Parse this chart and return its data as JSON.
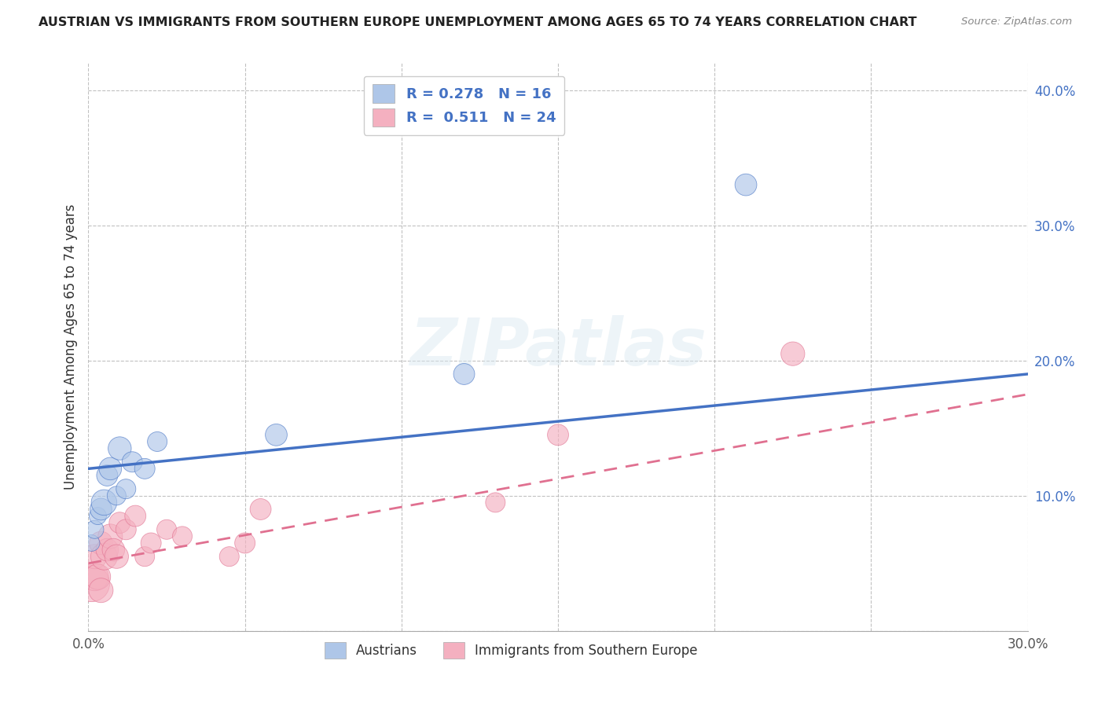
{
  "title": "AUSTRIAN VS IMMIGRANTS FROM SOUTHERN EUROPE UNEMPLOYMENT AMONG AGES 65 TO 74 YEARS CORRELATION CHART",
  "source": "Source: ZipAtlas.com",
  "ylabel": "Unemployment Among Ages 65 to 74 years",
  "xlim": [
    0.0,
    0.3
  ],
  "ylim": [
    0.0,
    0.42
  ],
  "x_ticks": [
    0.0,
    0.05,
    0.1,
    0.15,
    0.2,
    0.25,
    0.3
  ],
  "y_ticks": [
    0.0,
    0.1,
    0.2,
    0.3,
    0.4
  ],
  "R_austrians": 0.278,
  "N_austrians": 16,
  "R_immigrants": 0.511,
  "N_immigrants": 24,
  "color_austrians": "#aec6e8",
  "color_immigrants": "#f4b0c0",
  "line_color_austrians": "#4472c4",
  "line_color_immigrants": "#e07090",
  "legend_label_austrians": "Austrians",
  "legend_label_immigrants": "Immigrants from Southern Europe",
  "watermark": "ZIPatlas",
  "background_color": "#ffffff",
  "grid_color": "#bbbbbb",
  "austrians_x": [
    0.001,
    0.002,
    0.003,
    0.004,
    0.005,
    0.006,
    0.007,
    0.009,
    0.01,
    0.012,
    0.014,
    0.018,
    0.022,
    0.06,
    0.12,
    0.21
  ],
  "austrians_y": [
    0.065,
    0.075,
    0.085,
    0.09,
    0.095,
    0.115,
    0.12,
    0.1,
    0.135,
    0.105,
    0.125,
    0.12,
    0.14,
    0.145,
    0.19,
    0.33
  ],
  "austrians_size": [
    45,
    55,
    50,
    80,
    110,
    75,
    85,
    60,
    90,
    65,
    70,
    70,
    65,
    80,
    75,
    80
  ],
  "immigrants_x": [
    0.001,
    0.002,
    0.002,
    0.003,
    0.004,
    0.004,
    0.005,
    0.006,
    0.007,
    0.008,
    0.009,
    0.01,
    0.012,
    0.015,
    0.018,
    0.02,
    0.025,
    0.03,
    0.045,
    0.05,
    0.055,
    0.13,
    0.15,
    0.225
  ],
  "immigrants_y": [
    0.035,
    0.04,
    0.055,
    0.04,
    0.065,
    0.03,
    0.055,
    0.06,
    0.07,
    0.06,
    0.055,
    0.08,
    0.075,
    0.085,
    0.055,
    0.065,
    0.075,
    0.07,
    0.055,
    0.065,
    0.09,
    0.095,
    0.145,
    0.205
  ],
  "immigrants_size": [
    220,
    130,
    100,
    110,
    90,
    100,
    120,
    85,
    100,
    85,
    95,
    75,
    70,
    75,
    65,
    70,
    65,
    65,
    65,
    70,
    75,
    65,
    75,
    95
  ],
  "blue_line_x0": 0.0,
  "blue_line_y0": 0.12,
  "blue_line_x1": 0.3,
  "blue_line_y1": 0.19,
  "pink_line_x0": 0.0,
  "pink_line_y0": 0.05,
  "pink_line_x1": 0.3,
  "pink_line_y1": 0.175
}
